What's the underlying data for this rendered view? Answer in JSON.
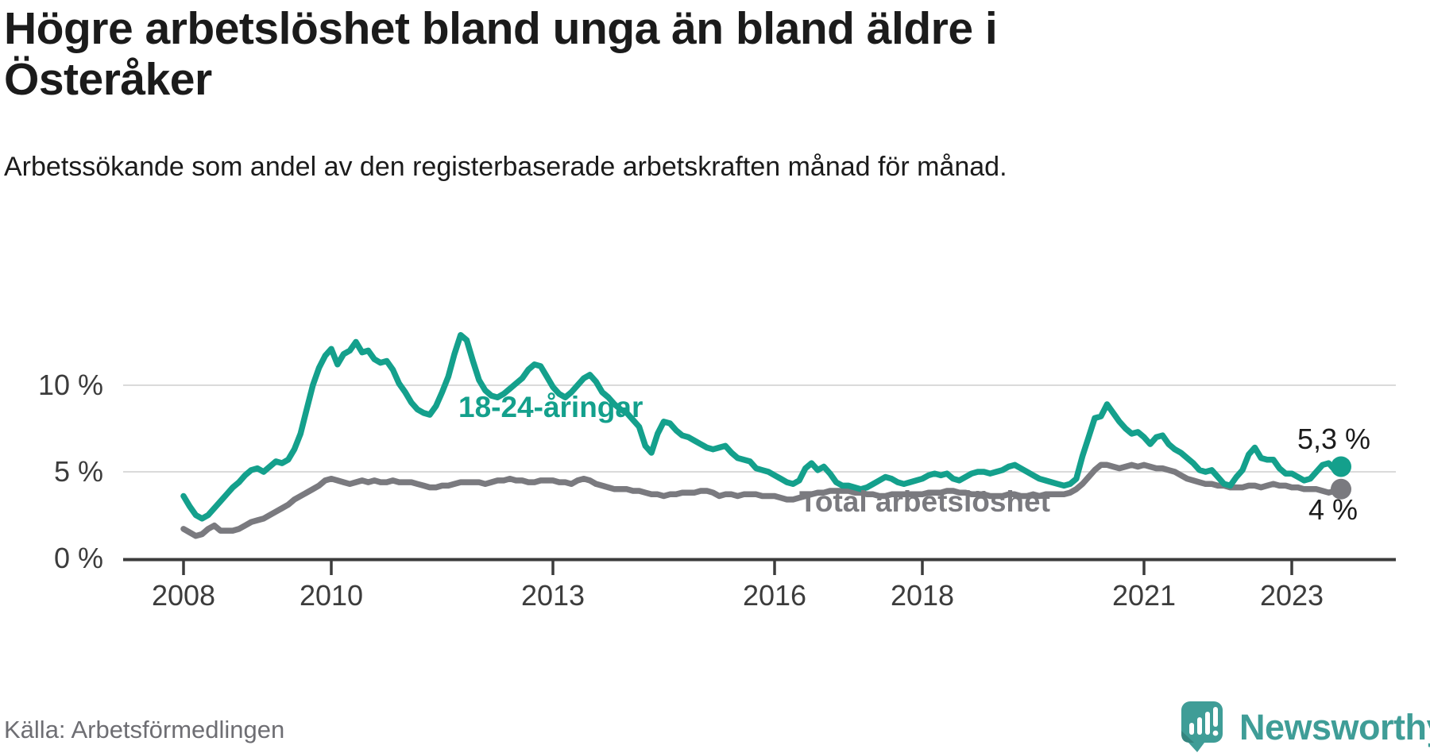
{
  "title": "Högre arbetslöshet bland unga än bland äldre i Österåker",
  "subtitle": "Arbetssökande som andel av den registerbaserade arbetskraften månad för månad.",
  "source": "Källa: Arbetsförmedlingen",
  "logo": {
    "text": "Newsworthy",
    "icon": "newsworthy-speech-bubble-barchart-icon",
    "color": "#3f9d97"
  },
  "colors": {
    "young_line": "#14a08c",
    "total_line": "#7a7a7f",
    "gridline": "#dadada",
    "axis": "#3c3c3c",
    "text": "#1b1b1b"
  },
  "chart_data": {
    "type": "line",
    "title": "Högre arbetslöshet bland unga än bland äldre i Österåker",
    "xlabel": "",
    "ylabel": "Arbetssökande som andel av den registerbaserade arbetskraften",
    "x_start": "2008-01",
    "x_end": "2023-09",
    "x_tick_years": [
      2008,
      2010,
      2013,
      2016,
      2018,
      2021,
      2023
    ],
    "x_tick_labels": [
      "2008",
      "2010",
      "2013",
      "2016",
      "2018",
      "2021",
      "2023"
    ],
    "y_tick_values": [
      0,
      5,
      10
    ],
    "y_tick_labels": [
      "0 %",
      "5 %",
      "10 %"
    ],
    "ylim": [
      0,
      13.7
    ],
    "grid": "horizontal-only",
    "legend_position": "inline-labels",
    "series": [
      {
        "name": "18-24-åringar",
        "color": "#14a08c",
        "end_label": "5,3 %",
        "end_value": 5.3,
        "values": [
          3.6,
          3.0,
          2.5,
          2.3,
          2.5,
          2.9,
          3.3,
          3.7,
          4.1,
          4.4,
          4.8,
          5.1,
          5.2,
          5.0,
          5.3,
          5.6,
          5.5,
          5.7,
          6.3,
          7.2,
          8.6,
          10.0,
          11.0,
          11.7,
          12.1,
          11.2,
          11.8,
          12.0,
          12.5,
          11.9,
          12.0,
          11.5,
          11.3,
          11.4,
          10.9,
          10.1,
          9.6,
          9.0,
          8.6,
          8.4,
          8.3,
          8.8,
          9.6,
          10.5,
          11.8,
          12.9,
          12.6,
          11.4,
          10.3,
          9.7,
          9.4,
          9.3,
          9.5,
          9.8,
          10.1,
          10.4,
          10.9,
          11.2,
          11.1,
          10.5,
          9.9,
          9.5,
          9.3,
          9.6,
          10.0,
          10.4,
          10.6,
          10.2,
          9.6,
          9.3,
          8.9,
          8.6,
          8.4,
          8.0,
          7.6,
          6.5,
          6.1,
          7.2,
          7.9,
          7.8,
          7.4,
          7.1,
          7.0,
          6.8,
          6.6,
          6.4,
          6.3,
          6.4,
          6.5,
          6.1,
          5.8,
          5.7,
          5.6,
          5.2,
          5.1,
          5.0,
          4.8,
          4.6,
          4.4,
          4.3,
          4.5,
          5.2,
          5.5,
          5.1,
          5.3,
          4.9,
          4.4,
          4.2,
          4.2,
          4.1,
          4.0,
          4.1,
          4.3,
          4.5,
          4.7,
          4.6,
          4.4,
          4.3,
          4.4,
          4.5,
          4.6,
          4.8,
          4.9,
          4.8,
          4.9,
          4.6,
          4.5,
          4.7,
          4.9,
          5.0,
          5.0,
          4.9,
          5.0,
          5.1,
          5.3,
          5.4,
          5.2,
          5.0,
          4.8,
          4.6,
          4.5,
          4.4,
          4.3,
          4.2,
          4.3,
          4.6,
          5.9,
          7.0,
          8.1,
          8.2,
          8.9,
          8.4,
          7.9,
          7.5,
          7.2,
          7.3,
          7.0,
          6.6,
          7.0,
          7.1,
          6.6,
          6.3,
          6.1,
          5.8,
          5.5,
          5.1,
          5.0,
          5.1,
          4.7,
          4.3,
          4.2,
          4.7,
          5.1,
          6.0,
          6.4,
          5.8,
          5.7,
          5.7,
          5.2,
          4.9,
          4.9,
          4.7,
          4.5,
          4.6,
          5.0,
          5.4,
          5.5,
          5.1,
          5.3
        ]
      },
      {
        "name": "Total arbetslöshet",
        "color": "#7a7a7f",
        "end_label": "4 %",
        "end_value": 4.0,
        "values": [
          1.7,
          1.5,
          1.3,
          1.4,
          1.7,
          1.9,
          1.6,
          1.6,
          1.6,
          1.7,
          1.9,
          2.1,
          2.2,
          2.3,
          2.5,
          2.7,
          2.9,
          3.1,
          3.4,
          3.6,
          3.8,
          4.0,
          4.2,
          4.5,
          4.6,
          4.5,
          4.4,
          4.3,
          4.4,
          4.5,
          4.4,
          4.5,
          4.4,
          4.4,
          4.5,
          4.4,
          4.4,
          4.4,
          4.3,
          4.2,
          4.1,
          4.1,
          4.2,
          4.2,
          4.3,
          4.4,
          4.4,
          4.4,
          4.4,
          4.3,
          4.4,
          4.5,
          4.5,
          4.6,
          4.5,
          4.5,
          4.4,
          4.4,
          4.5,
          4.5,
          4.5,
          4.4,
          4.4,
          4.3,
          4.5,
          4.6,
          4.5,
          4.3,
          4.2,
          4.1,
          4.0,
          4.0,
          4.0,
          3.9,
          3.9,
          3.8,
          3.7,
          3.7,
          3.6,
          3.7,
          3.7,
          3.8,
          3.8,
          3.8,
          3.9,
          3.9,
          3.8,
          3.6,
          3.7,
          3.7,
          3.6,
          3.7,
          3.7,
          3.7,
          3.6,
          3.6,
          3.6,
          3.5,
          3.4,
          3.4,
          3.5,
          3.6,
          3.7,
          3.8,
          3.8,
          3.9,
          3.9,
          3.9,
          3.9,
          3.8,
          3.8,
          3.7,
          3.7,
          3.6,
          3.6,
          3.7,
          3.7,
          3.7,
          3.7,
          3.7,
          3.7,
          3.8,
          3.8,
          3.8,
          3.9,
          3.9,
          3.8,
          3.8,
          3.7,
          3.7,
          3.7,
          3.6,
          3.6,
          3.6,
          3.7,
          3.7,
          3.6,
          3.6,
          3.7,
          3.6,
          3.7,
          3.7,
          3.7,
          3.7,
          3.8,
          4.0,
          4.3,
          4.7,
          5.1,
          5.4,
          5.4,
          5.3,
          5.2,
          5.3,
          5.4,
          5.3,
          5.4,
          5.3,
          5.2,
          5.2,
          5.1,
          5.0,
          4.8,
          4.6,
          4.5,
          4.4,
          4.3,
          4.3,
          4.2,
          4.2,
          4.1,
          4.1,
          4.1,
          4.2,
          4.2,
          4.1,
          4.2,
          4.3,
          4.2,
          4.2,
          4.1,
          4.1,
          4.0,
          4.0,
          4.0,
          3.9,
          3.8,
          3.9,
          4.0
        ]
      }
    ]
  }
}
